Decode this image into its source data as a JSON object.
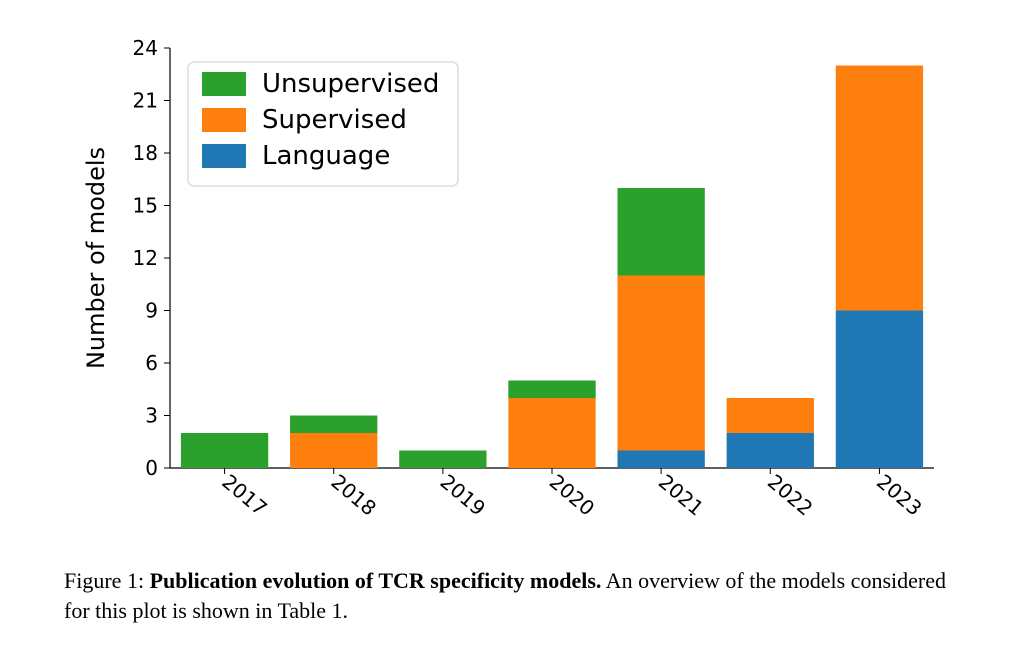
{
  "chart": {
    "type": "stacked-bar",
    "categories": [
      "2017",
      "2018",
      "2019",
      "2020",
      "2021",
      "2022",
      "2023"
    ],
    "series": [
      {
        "name": "Language",
        "color": "#1f77b4",
        "values": [
          0,
          0,
          0,
          0,
          1,
          2,
          9
        ]
      },
      {
        "name": "Supervised",
        "color": "#ff7f0e",
        "values": [
          0,
          2,
          0,
          4,
          10,
          2,
          14
        ]
      },
      {
        "name": "Unsupervised",
        "color": "#2ca02c",
        "values": [
          2,
          1,
          1,
          1,
          5,
          0,
          0
        ]
      }
    ],
    "legend_order": [
      "Unsupervised",
      "Supervised",
      "Language"
    ],
    "ylabel": "Number of models",
    "ylim": [
      0,
      24
    ],
    "ytick_step": 3,
    "bar_width": 0.8,
    "background_color": "#ffffff",
    "axis_color": "#000000",
    "tick_fontsize": 20,
    "label_fontsize": 24,
    "legend_fontsize": 26,
    "xtick_rotation": 40
  },
  "caption": {
    "fignum": "Figure 1:",
    "title": "Publication evolution of TCR specificity models.",
    "rest": " An overview of the models considered for this plot is shown in Table 1."
  }
}
